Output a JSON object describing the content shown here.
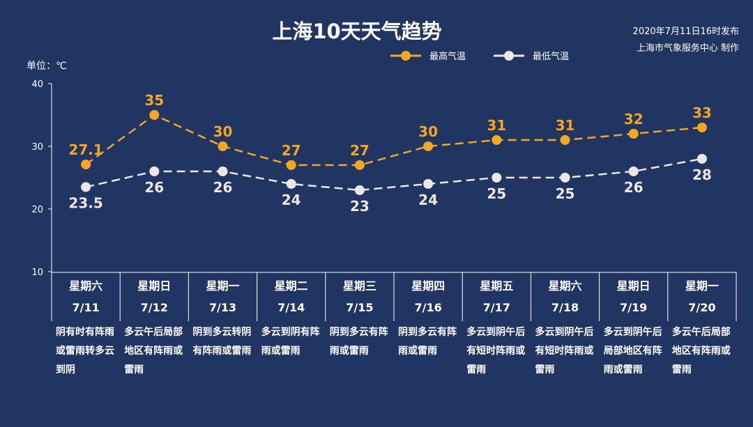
{
  "header": {
    "title": "上海10天天气趋势",
    "publish_line1": "2020年7月11日16时发布",
    "publish_line2": "上海市气象服务中心 制作"
  },
  "chart_data": {
    "type": "line",
    "title": "上海10天天气趋势",
    "unit_label": "单位：℃",
    "ylim": [
      10,
      40
    ],
    "yticks": [
      10,
      20,
      30,
      40
    ],
    "grid": false,
    "legend_position": "top-right",
    "weekdays": [
      "星期六",
      "星期日",
      "星期一",
      "星期二",
      "星期三",
      "星期四",
      "星期五",
      "星期六",
      "星期日",
      "星期一"
    ],
    "categories": [
      "7/11",
      "7/12",
      "7/13",
      "7/14",
      "7/15",
      "7/16",
      "7/17",
      "7/18",
      "7/19",
      "7/20"
    ],
    "series": [
      {
        "name": "最高气温",
        "color": "#f5a623",
        "values": [
          27.1,
          35,
          30,
          27,
          27,
          30,
          31,
          31,
          32,
          33
        ],
        "labels": [
          "27.1",
          "35",
          "30",
          "27",
          "27",
          "30",
          "31",
          "31",
          "32",
          "33"
        ]
      },
      {
        "name": "最低气温",
        "color": "#ece6e4",
        "values": [
          23.5,
          26,
          26,
          24,
          23,
          24,
          25,
          25,
          26,
          28
        ],
        "labels": [
          "23.5",
          "26",
          "26",
          "24",
          "23",
          "24",
          "25",
          "25",
          "26",
          "28"
        ]
      }
    ],
    "descriptions": [
      "阴有时有阵雨或雷雨转多云到阴",
      "多云午后局部地区有阵雨或雷雨",
      "阴到多云转阴有阵雨或雷雨",
      "多云到阴有阵雨或雷雨",
      "阴到多云有阵雨或雷雨",
      "阴到多云有阵雨或雷雨",
      "多云到阴午后有短时阵雨或雷雨",
      "多云到阴午后有短时阵雨或雷雨",
      "多云到阴午后局部地区有阵雨或雷雨",
      "多云午后局部地区有阵雨或雷雨"
    ]
  }
}
